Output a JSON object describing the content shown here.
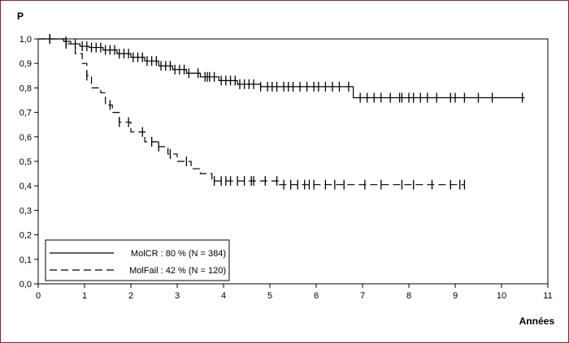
{
  "chart_data": {
    "type": "line",
    "ylabel": "P",
    "xlabel": "Années",
    "xlim": [
      0,
      11
    ],
    "ylim": [
      0,
      1
    ],
    "x_ticks": [
      "0",
      "1",
      "2",
      "3",
      "4",
      "5",
      "6",
      "7",
      "8",
      "9",
      "10",
      "11"
    ],
    "y_ticks": [
      "0,0",
      "0,1",
      "0,2",
      "0,3",
      "0,4",
      "0,5",
      "0,6",
      "0,7",
      "0,8",
      "0,9",
      "1,0"
    ],
    "legend_position": "bottom-left",
    "grid": false,
    "series": [
      {
        "name": "MolCR : 80 % (N = 384)",
        "style": "solid",
        "points": [
          [
            0,
            1.0
          ],
          [
            0.45,
            1.0
          ],
          [
            0.55,
            0.99
          ],
          [
            0.7,
            0.98
          ],
          [
            0.9,
            0.97
          ],
          [
            1.1,
            0.965
          ],
          [
            1.4,
            0.955
          ],
          [
            1.7,
            0.94
          ],
          [
            2.0,
            0.925
          ],
          [
            2.3,
            0.91
          ],
          [
            2.6,
            0.89
          ],
          [
            2.9,
            0.875
          ],
          [
            3.2,
            0.86
          ],
          [
            3.5,
            0.845
          ],
          [
            3.9,
            0.83
          ],
          [
            4.3,
            0.815
          ],
          [
            4.8,
            0.805
          ],
          [
            5.3,
            0.805
          ],
          [
            6.0,
            0.805
          ],
          [
            6.7,
            0.805
          ],
          [
            6.8,
            0.76
          ],
          [
            7.5,
            0.76
          ],
          [
            10.5,
            0.76
          ]
        ],
        "censor_x": [
          0.25,
          0.6,
          0.8,
          0.95,
          1.05,
          1.15,
          1.25,
          1.35,
          1.45,
          1.55,
          1.65,
          1.75,
          1.85,
          1.95,
          2.05,
          2.15,
          2.25,
          2.35,
          2.45,
          2.55,
          2.65,
          2.75,
          2.85,
          2.95,
          3.05,
          3.15,
          3.25,
          3.45,
          3.6,
          3.65,
          3.7,
          3.8,
          3.95,
          4.05,
          4.15,
          4.25,
          4.35,
          4.45,
          4.55,
          4.65,
          4.8,
          4.95,
          5.05,
          5.15,
          5.3,
          5.4,
          5.5,
          5.65,
          5.8,
          5.95,
          6.05,
          6.2,
          6.35,
          6.5,
          6.7,
          6.95,
          7.1,
          7.25,
          7.4,
          7.6,
          7.8,
          7.85,
          8.0,
          8.1,
          8.25,
          8.4,
          8.6,
          8.9,
          9.0,
          9.2,
          9.5,
          9.8,
          10.45
        ]
      },
      {
        "name": "MolFail : 42 % (N = 120)",
        "style": "dashed",
        "points": [
          [
            0,
            1.0
          ],
          [
            0.45,
            1.0
          ],
          [
            0.6,
            0.98
          ],
          [
            0.8,
            0.94
          ],
          [
            0.95,
            0.9
          ],
          [
            1.05,
            0.85
          ],
          [
            1.15,
            0.8
          ],
          [
            1.35,
            0.78
          ],
          [
            1.45,
            0.73
          ],
          [
            1.6,
            0.7
          ],
          [
            1.75,
            0.66
          ],
          [
            2.0,
            0.62
          ],
          [
            2.3,
            0.58
          ],
          [
            2.6,
            0.56
          ],
          [
            2.8,
            0.53
          ],
          [
            3.0,
            0.5
          ],
          [
            3.3,
            0.47
          ],
          [
            3.5,
            0.45
          ],
          [
            3.75,
            0.42
          ],
          [
            5.1,
            0.42
          ],
          [
            5.2,
            0.405
          ],
          [
            9.2,
            0.405
          ]
        ],
        "censor_x": [
          0.25,
          0.6,
          1.05,
          1.55,
          1.75,
          1.95,
          2.25,
          2.45,
          2.6,
          2.85,
          3.2,
          3.8,
          3.95,
          4.05,
          4.15,
          4.3,
          4.45,
          4.6,
          4.65,
          4.9,
          5.15,
          5.3,
          5.45,
          5.6,
          5.75,
          5.85,
          5.95,
          6.2,
          6.4,
          6.6,
          7.05,
          7.4,
          7.85,
          8.1,
          8.5,
          8.9,
          9.1,
          9.2
        ]
      }
    ]
  }
}
